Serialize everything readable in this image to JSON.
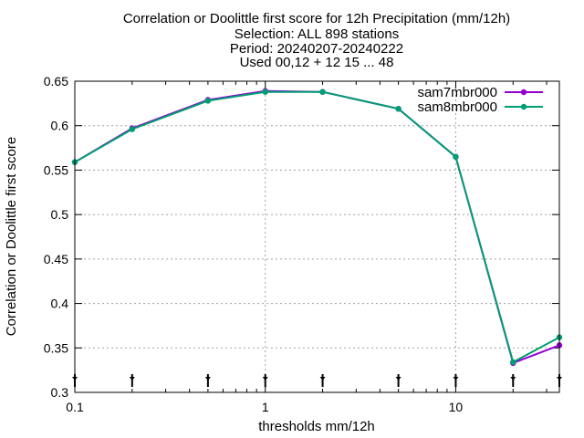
{
  "chart_data": {
    "type": "line",
    "title_lines": [
      "Correlation or Doolittle first score  for 12h Precipitation (mm/12h)",
      "Selection: ALL    898 stations",
      "Period: 20240207-20240222",
      "Used 00,12 + 12 15 ... 48"
    ],
    "xlabel": "thresholds mm/12h",
    "ylabel": "Correlation or Doolittle first score",
    "x_scale": "log",
    "xlim": [
      0.1,
      35
    ],
    "ylim": [
      0.3,
      0.65
    ],
    "x_ticks": [
      0.1,
      1,
      10
    ],
    "x_tick_labels": [
      "0.1",
      "1",
      "10"
    ],
    "y_ticks": [
      0.3,
      0.35,
      0.4,
      0.45,
      0.5,
      0.55,
      0.6,
      0.65
    ],
    "y_tick_labels": [
      "0.3",
      "0.35",
      "0.4",
      "0.45",
      "0.5",
      "0.55",
      "0.6",
      "0.65"
    ],
    "grid": true,
    "legend_position": "top-right",
    "x": [
      0.1,
      0.2,
      0.5,
      1,
      2,
      5,
      10,
      20,
      35
    ],
    "series": [
      {
        "name": "sam7mbr000",
        "color": "#9400d3",
        "values": [
          0.559,
          0.597,
          0.629,
          0.639,
          0.638,
          0.619,
          0.565,
          0.333,
          0.353
        ]
      },
      {
        "name": "sam8mbr000",
        "color": "#009e73",
        "values": [
          0.559,
          0.596,
          0.628,
          0.638,
          0.638,
          0.619,
          0.565,
          0.334,
          0.362
        ]
      }
    ],
    "marker_x": [
      0.1,
      0.2,
      0.5,
      1,
      2,
      5,
      10,
      20,
      35
    ]
  }
}
